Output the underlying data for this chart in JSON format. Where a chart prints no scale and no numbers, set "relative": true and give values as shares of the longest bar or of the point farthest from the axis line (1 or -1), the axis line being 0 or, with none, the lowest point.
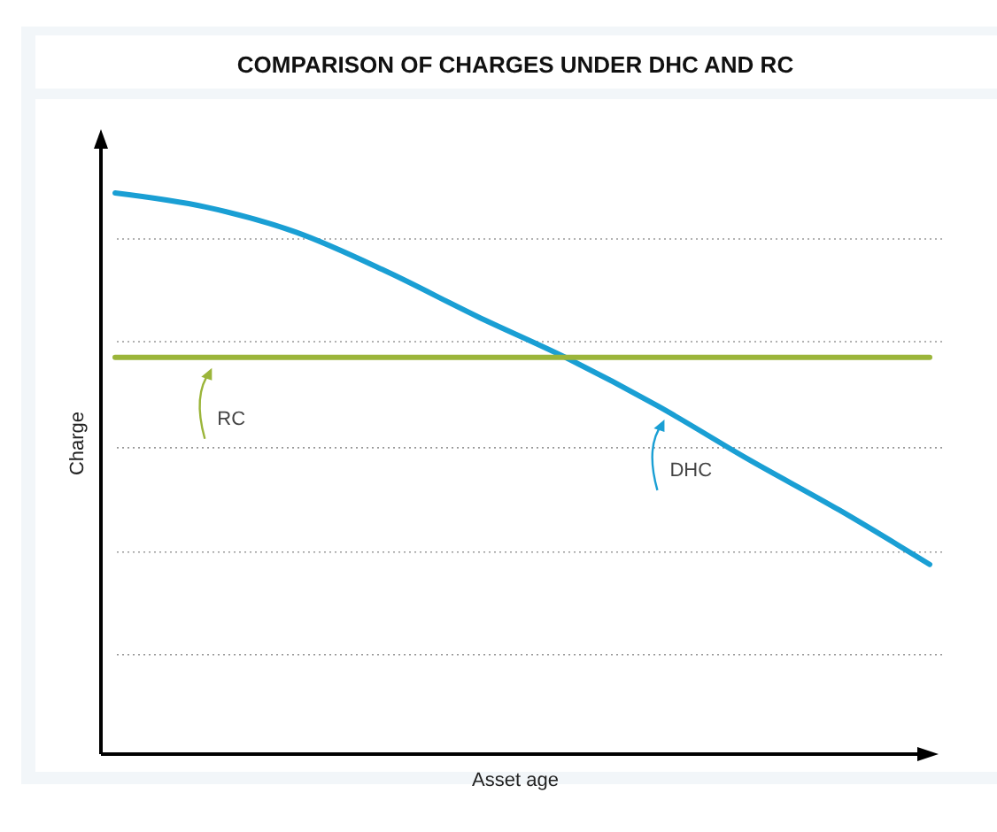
{
  "chart_data": {
    "type": "line",
    "title": "COMPARISON OF CHARGES UNDER DHC AND RC",
    "xlabel": "Asset age",
    "ylabel": "Charge",
    "relative": true,
    "grid": "y",
    "legend": false,
    "marker": "none",
    "line_style": "solid",
    "categories": [
      null,
      null,
      null,
      null,
      null,
      null,
      null,
      null,
      null,
      null
    ],
    "series": [
      {
        "name": "DHC",
        "color": "#1a9fd4",
        "values": [
          1.0,
          0.975,
          0.93,
          0.86,
          0.78,
          0.705,
          0.62,
          0.525,
          0.435,
          0.338
        ]
      },
      {
        "name": "RC",
        "color": "#9bb53a",
        "values": [
          0.707,
          0.707,
          0.707,
          0.707,
          0.707,
          0.707,
          0.707,
          0.707,
          0.707,
          0.707
        ]
      }
    ]
  }
}
